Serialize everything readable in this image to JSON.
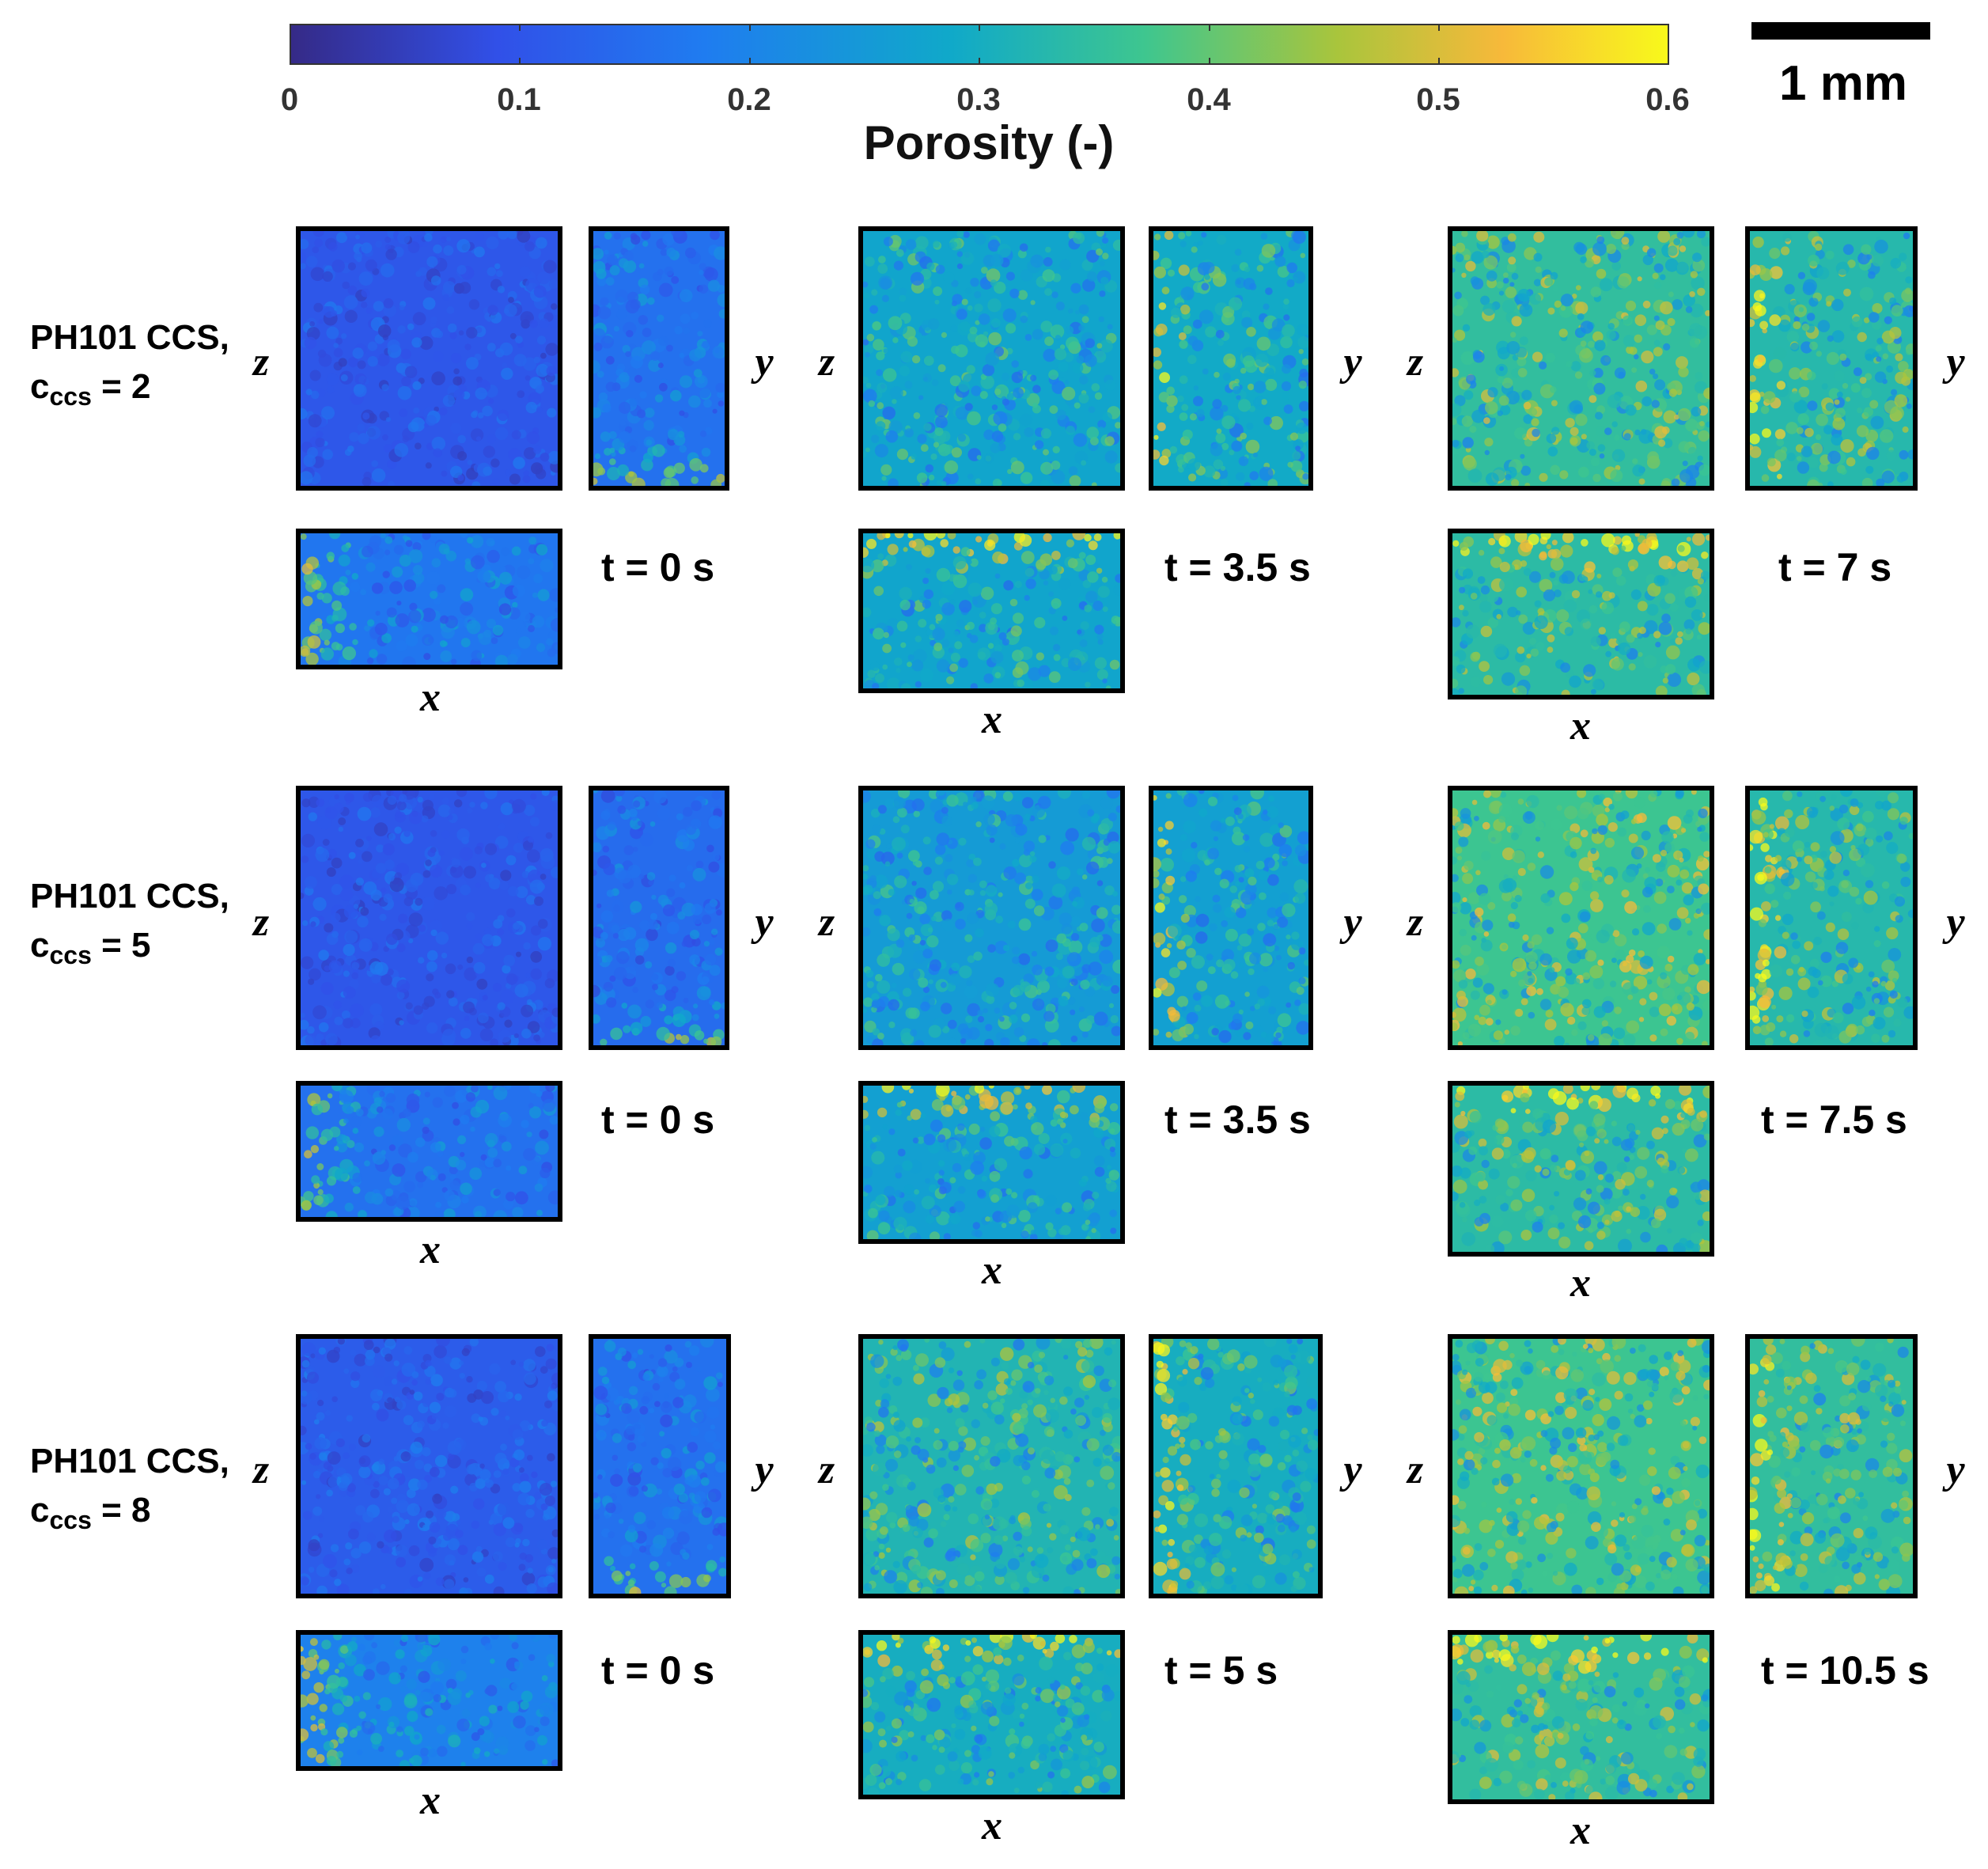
{
  "colorbar": {
    "title": "Porosity (-)",
    "ticks": [
      "0",
      "0.1",
      "0.2",
      "0.3",
      "0.4",
      "0.5",
      "0.6"
    ],
    "colormap": [
      "#352a87",
      "#3150e8",
      "#1f7cf0",
      "#10a9c9",
      "#3ec68f",
      "#a9c53c",
      "#f7b93a",
      "#f8f91b"
    ]
  },
  "scale_bar": {
    "label": "1 mm"
  },
  "axes": {
    "x": "x",
    "y": "y",
    "z": "z"
  },
  "rows": [
    {
      "name": "PH101 CCS,",
      "param_prefix": "c",
      "param_sub": "ccs",
      "param_value": " = 2",
      "times": [
        "t = 0 s",
        "t = 3.5 s",
        "t = 7 s"
      ]
    },
    {
      "name": "PH101 CCS,",
      "param_prefix": "c",
      "param_sub": "ccs",
      "param_value": " = 5",
      "times": [
        "t = 0 s",
        "t = 3.5 s",
        "t = 7.5 s"
      ]
    },
    {
      "name": "PH101 CCS,",
      "param_prefix": "c",
      "param_sub": "ccs",
      "param_value": " = 8",
      "times": [
        "t = 0 s",
        "t = 5 s",
        "t = 10.5 s"
      ]
    }
  ]
}
